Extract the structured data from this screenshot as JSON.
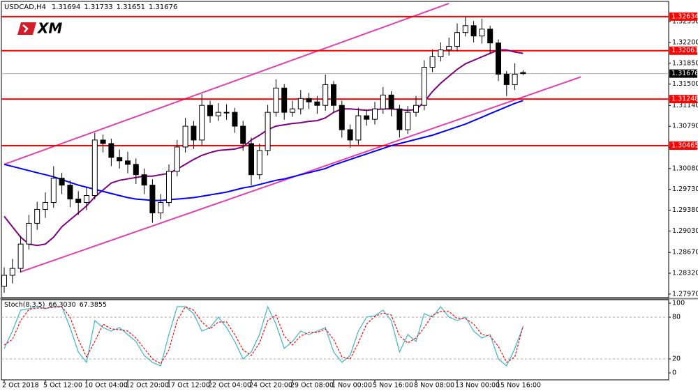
{
  "chart_data": {
    "type": "candlestick",
    "symbol": "USDCAD,H4",
    "logo": "XM",
    "categories": [
      "2 Oct 2018",
      null,
      null,
      null,
      null,
      "5 Oct 12:00",
      null,
      null,
      null,
      null,
      "10 Oct 04:00",
      null,
      null,
      null,
      null,
      "12 Oct 20:00",
      null,
      null,
      null,
      null,
      "17 Oct 12:00",
      null,
      null,
      null,
      null,
      "22 Oct 04:00",
      null,
      null,
      null,
      null,
      "24 Oct 20:00",
      null,
      null,
      null,
      null,
      "29 Oct 08:00",
      null,
      null,
      null,
      null,
      "1 Nov 00:00",
      null,
      null,
      null,
      null,
      "5 Nov 16:00",
      null,
      null,
      null,
      null,
      "8 Nov 08:00",
      null,
      null,
      null,
      null,
      "13 Nov 00:00",
      null,
      null,
      null,
      null,
      "15 Nov 16:00",
      null,
      null,
      null
    ],
    "open": [
      1.281,
      1.28285,
      1.28401,
      1.2881,
      1.29159,
      1.29393,
      1.29509,
      1.29917,
      1.29801,
      1.29567,
      1.29509,
      1.29626,
      1.30559,
      1.305,
      1.30267,
      1.30209,
      1.3015,
      1.29976,
      1.29801,
      1.29334,
      1.29509,
      1.30034,
      1.30442,
      1.30792,
      1.30559,
      1.31142,
      1.30967,
      1.31025,
      1.31025,
      1.30792,
      1.305,
      1.29976,
      1.30384,
      1.31025,
      1.31433,
      1.31025,
      1.31083,
      1.31258,
      1.312,
      1.31142,
      1.31491,
      1.31142,
      1.30733,
      1.30559,
      1.30967,
      1.30908,
      1.31083,
      1.31316,
      1.31083,
      1.30733,
      1.31025,
      1.31142,
      1.31783,
      1.31958,
      1.32074,
      1.32133,
      1.32366,
      1.32482,
      1.32308,
      1.32424,
      1.32191,
      1.31666,
      1.31491,
      1.31694
    ],
    "high": [
      1.2842,
      1.2856,
      1.2895,
      1.293,
      1.2952,
      1.2968,
      1.3012,
      1.3001,
      1.2988,
      1.297,
      1.2976,
      1.3068,
      1.3065,
      1.3058,
      1.304,
      1.3036,
      1.3025,
      1.3008,
      1.299,
      1.2965,
      1.3015,
      1.3056,
      1.3093,
      1.3088,
      1.3133,
      1.3122,
      1.3118,
      1.3116,
      1.311,
      1.3088,
      1.306,
      1.305,
      1.3115,
      1.3158,
      1.315,
      1.3122,
      1.314,
      1.3135,
      1.313,
      1.3166,
      1.3155,
      1.3122,
      1.3082,
      1.311,
      1.3106,
      1.312,
      1.3145,
      1.3138,
      1.3115,
      1.3113,
      1.313,
      1.319,
      1.3208,
      1.322,
      1.3228,
      1.3252,
      1.32634,
      1.3256,
      1.326,
      1.3248,
      1.3225,
      1.3172,
      1.3185,
      1.31733
    ],
    "low": [
      1.2799,
      1.2815,
      1.2833,
      1.2872,
      1.2905,
      1.2925,
      1.2942,
      1.2965,
      1.2943,
      1.293,
      1.2938,
      1.2956,
      1.3035,
      1.3012,
      1.3008,
      1.3,
      1.2982,
      1.2965,
      1.2917,
      1.2923,
      1.2944,
      1.2995,
      1.3035,
      1.3041,
      1.3047,
      1.3085,
      1.3088,
      1.309,
      1.3068,
      1.3038,
      1.298,
      1.299,
      1.303,
      1.3095,
      1.309,
      1.3095,
      1.3099,
      1.3108,
      1.31,
      1.3105,
      1.3102,
      1.306,
      1.3043,
      1.3048,
      1.308,
      1.3082,
      1.31,
      1.3096,
      1.306,
      1.3066,
      1.3095,
      1.3106,
      1.317,
      1.3188,
      1.3198,
      1.3205,
      1.323,
      1.322,
      1.3218,
      1.3202,
      1.3155,
      1.313,
      1.314,
      1.31651
    ],
    "close": [
      1.28285,
      1.28401,
      1.2881,
      1.29159,
      1.29393,
      1.29509,
      1.29917,
      1.29801,
      1.29567,
      1.29509,
      1.29626,
      1.30559,
      1.305,
      1.30267,
      1.30209,
      1.3015,
      1.29976,
      1.29801,
      1.29334,
      1.29509,
      1.30034,
      1.30442,
      1.30792,
      1.30559,
      1.31142,
      1.30967,
      1.31025,
      1.31025,
      1.30792,
      1.305,
      1.29976,
      1.30384,
      1.31025,
      1.31433,
      1.31025,
      1.31083,
      1.31258,
      1.312,
      1.31142,
      1.31491,
      1.31142,
      1.30733,
      1.30559,
      1.30967,
      1.30908,
      1.31083,
      1.31316,
      1.31083,
      1.30733,
      1.31025,
      1.31142,
      1.31783,
      1.31958,
      1.32074,
      1.32133,
      1.32366,
      1.32482,
      1.32308,
      1.32424,
      1.32191,
      1.31666,
      1.31491,
      1.31666,
      1.31676
    ],
    "up_color": "#ffffff",
    "down_color": "#000000",
    "ylim": [
      1.2791,
      1.3289
    ],
    "yticks": [
      {
        "value": 1.3255,
        "label": "1.32550"
      },
      {
        "value": 1.322,
        "label": "1.32200"
      },
      {
        "value": 1.3185,
        "label": "1.31850"
      },
      {
        "value": 1.315,
        "label": "1.31500"
      },
      {
        "value": 1.3114,
        "label": "1.31140"
      },
      {
        "value": 1.3079,
        "label": "1.30790"
      },
      {
        "value": 1.3044,
        "label": "1.30440"
      },
      {
        "value": 1.3008,
        "label": "1.30080"
      },
      {
        "value": 1.2973,
        "label": "1.29730"
      },
      {
        "value": 1.2938,
        "label": "1.29380"
      },
      {
        "value": 1.2903,
        "label": "1.29030"
      },
      {
        "value": 1.2867,
        "label": "1.28670"
      },
      {
        "value": 1.2832,
        "label": "1.28320"
      },
      {
        "value": 1.2797,
        "label": "1.27970"
      }
    ],
    "levels": [
      {
        "value": 1.32634,
        "color": "#ff0000"
      },
      {
        "value": 1.32061,
        "color": "#ff0000"
      },
      {
        "value": 1.31248,
        "color": "#ff0000"
      },
      {
        "value": 1.30465,
        "color": "#ff0000"
      }
    ],
    "moving_averages": [
      {
        "color": "#800080",
        "values": [
          1.29276,
          1.29101,
          1.28926,
          1.2881,
          1.28786,
          1.2881,
          1.28926,
          1.29101,
          1.29218,
          1.29334,
          1.29451,
          1.29602,
          1.29719,
          1.29836,
          1.29882,
          1.29906,
          1.29929,
          1.29952,
          1.29952,
          1.29976,
          1.29999,
          1.30069,
          1.3015,
          1.30232,
          1.30302,
          1.30349,
          1.30384,
          1.30395,
          1.30407,
          1.30442,
          1.30559,
          1.3064,
          1.30733,
          1.30792,
          1.30815,
          1.30838,
          1.3085,
          1.30873,
          1.30885,
          1.30932,
          1.31025,
          1.31083,
          1.31083,
          1.31072,
          1.3106,
          1.31072,
          1.31083,
          1.31083,
          1.31072,
          1.3106,
          1.31072,
          1.312,
          1.31375,
          1.31515,
          1.31631,
          1.31748,
          1.31841,
          1.31899,
          1.31958,
          1.32016,
          1.32074,
          1.32074,
          1.32039,
          1.32016
        ]
      },
      {
        "color": "#0000ff",
        "values": [
          1.3015,
          1.30115,
          1.3008,
          1.30045,
          1.3001,
          1.29976,
          1.29941,
          1.29894,
          1.29847,
          1.29801,
          1.29766,
          1.29731,
          1.29696,
          1.29661,
          1.29626,
          1.29591,
          1.29567,
          1.29556,
          1.29544,
          1.29544,
          1.29556,
          1.29567,
          1.29579,
          1.29591,
          1.29614,
          1.29637,
          1.29661,
          1.29684,
          1.29719,
          1.29754,
          1.29777,
          1.29812,
          1.29847,
          1.29882,
          1.29906,
          1.29941,
          1.29976,
          1.3001,
          1.30045,
          1.3008,
          1.30139,
          1.30185,
          1.30232,
          1.30279,
          1.30325,
          1.30372,
          1.30419,
          1.30465,
          1.305,
          1.30535,
          1.3057,
          1.30605,
          1.3064,
          1.30687,
          1.30733,
          1.3078,
          1.30827,
          1.30885,
          1.30943,
          1.31002,
          1.3106,
          1.31118,
          1.31176,
          1.31223
        ]
      }
    ],
    "trendlines": [
      {
        "color": "#e040b0",
        "from": [
          0,
          1.3015
        ],
        "to": [
          54,
          1.32856
        ]
      },
      {
        "color": "#e040b0",
        "from": [
          2,
          1.28343
        ],
        "to": [
          70,
          1.3162
        ]
      }
    ],
    "stochastic": {
      "title": "Stoch(8,3,5)",
      "readout": [
        {
          "value": 66.303,
          "label": "66.3030"
        },
        {
          "value": 67.3855,
          "label": "67.3855"
        }
      ],
      "ylim": [
        0,
        100
      ],
      "yticks": [
        100,
        80,
        20,
        0
      ],
      "levels": [
        80,
        20
      ],
      "series": [
        {
          "color": "#3cb4c8",
          "dash": false,
          "values": [
            35,
            60,
            90,
            92,
            95,
            92,
            95,
            95,
            65,
            30,
            15,
            75,
            65,
            60,
            65,
            55,
            45,
            25,
            15,
            10,
            55,
            95,
            95,
            85,
            60,
            65,
            80,
            65,
            45,
            20,
            30,
            55,
            95,
            70,
            35,
            45,
            60,
            55,
            60,
            65,
            30,
            15,
            25,
            60,
            80,
            82,
            90,
            75,
            30,
            55,
            45,
            85,
            80,
            95,
            80,
            75,
            80,
            60,
            50,
            55,
            20,
            10,
            35,
            66.303
          ]
        },
        {
          "color": "#ff0000",
          "dash": true,
          "values": [
            40,
            48,
            75,
            91,
            93,
            93,
            94,
            95,
            80,
            48,
            23,
            45,
            70,
            63,
            62,
            60,
            50,
            35,
            20,
            13,
            33,
            75,
            95,
            90,
            73,
            63,
            73,
            73,
            55,
            33,
            25,
            43,
            75,
            83,
            53,
            40,
            53,
            58,
            58,
            63,
            48,
            23,
            20,
            43,
            70,
            81,
            86,
            83,
            53,
            43,
            50,
            65,
            83,
            88,
            88,
            78,
            78,
            70,
            55,
            53,
            38,
            15,
            23,
            67.3855
          ]
        }
      ]
    }
  }
}
